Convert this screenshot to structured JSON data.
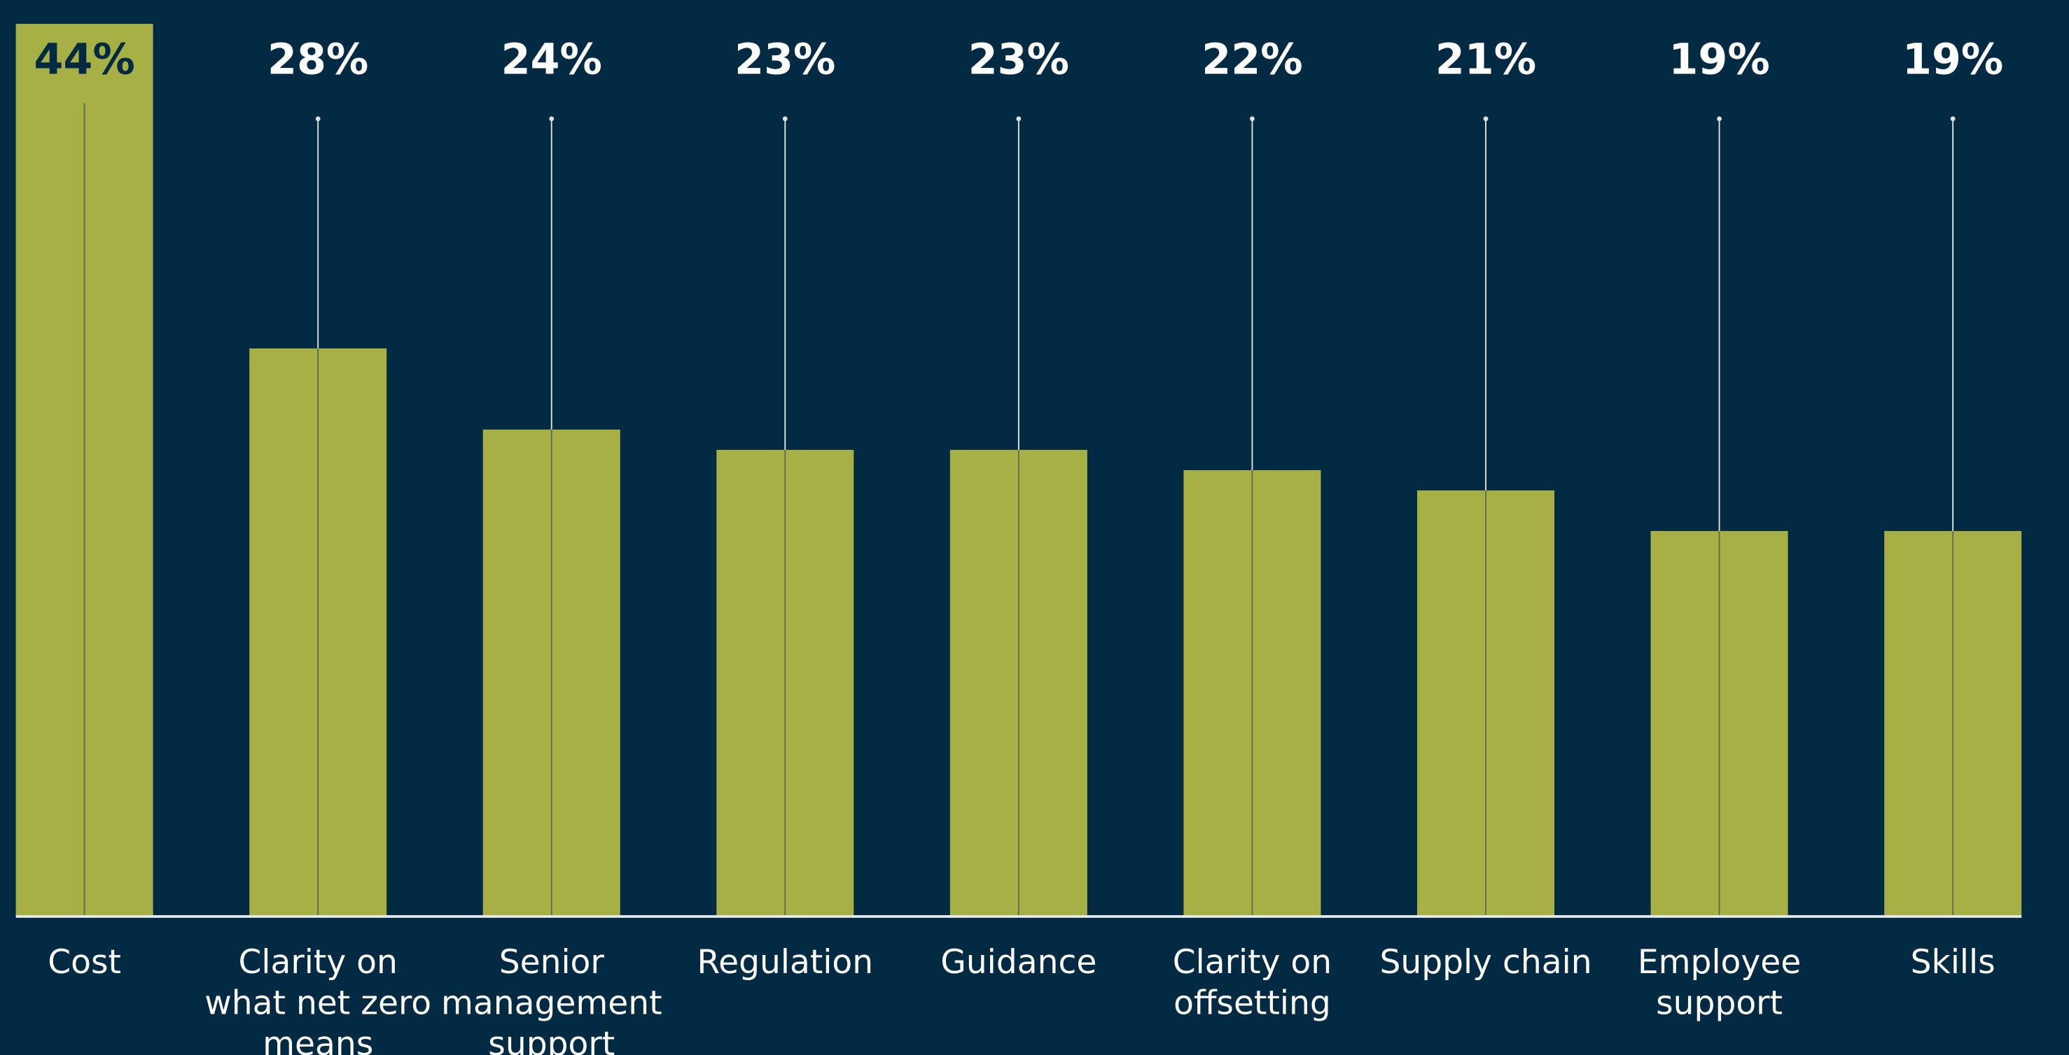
{
  "chart_data": {
    "type": "bar",
    "categories": [
      "Cost",
      "Clarity on what net zero means",
      "Senior management support",
      "Regulation",
      "Guidance",
      "Clarity on offsetting",
      "Supply chain",
      "Employee support",
      "Skills"
    ],
    "values": [
      44,
      28,
      24,
      23,
      23,
      22,
      21,
      19,
      19
    ],
    "value_labels": [
      "44%",
      "28%",
      "24%",
      "23%",
      "23%",
      "22%",
      "21%",
      "19%",
      "19%"
    ],
    "color": "#a6b044",
    "ylim": [
      0,
      44
    ]
  }
}
